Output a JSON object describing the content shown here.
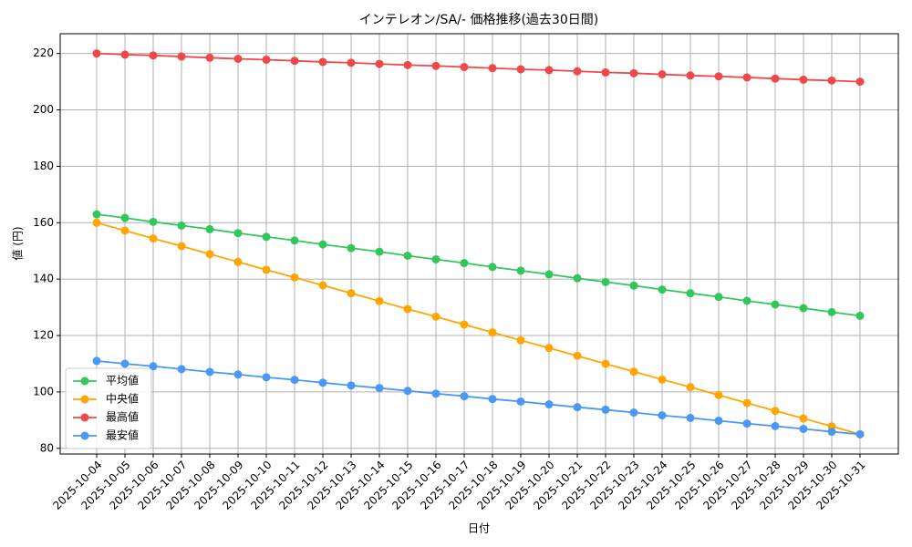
{
  "chart_data": {
    "type": "line",
    "title": "インテレオン/SA/- 価格推移(過去30日間)",
    "x_label": "日付",
    "y_label": "値 (円)",
    "categories": [
      "2025-10-04",
      "2025-10-05",
      "2025-10-06",
      "2025-10-07",
      "2025-10-08",
      "2025-10-09",
      "2025-10-10",
      "2025-10-11",
      "2025-10-12",
      "2025-10-13",
      "2025-10-14",
      "2025-10-15",
      "2025-10-16",
      "2025-10-17",
      "2025-10-18",
      "2025-10-19",
      "2025-10-20",
      "2025-10-21",
      "2025-10-22",
      "2025-10-23",
      "2025-10-24",
      "2025-10-25",
      "2025-10-26",
      "2025-10-27",
      "2025-10-28",
      "2025-10-29",
      "2025-10-30",
      "2025-10-31"
    ],
    "series": [
      {
        "name": "平均値",
        "color": "#33c75a",
        "values": [
          163,
          161.7,
          160.3,
          159,
          157.7,
          156.3,
          155,
          153.7,
          152.3,
          151,
          149.7,
          148.3,
          147,
          145.7,
          144.3,
          143,
          141.7,
          140.3,
          139,
          137.7,
          136.3,
          135,
          133.7,
          132.3,
          131,
          129.7,
          128.3,
          127
        ]
      },
      {
        "name": "中央値",
        "color": "#ffa500",
        "values": [
          160,
          157.2,
          154.4,
          151.7,
          148.9,
          146.1,
          143.3,
          140.6,
          137.8,
          135,
          132.2,
          129.4,
          126.7,
          123.9,
          121.1,
          118.3,
          115.6,
          112.8,
          110,
          107.2,
          104.4,
          101.7,
          98.9,
          96.1,
          93.3,
          90.6,
          87.8,
          85
        ]
      },
      {
        "name": "最高値",
        "color": "#f04848",
        "values": [
          220,
          219.6,
          219.3,
          218.9,
          218.5,
          218.1,
          217.8,
          217.4,
          217,
          216.7,
          216.3,
          215.9,
          215.6,
          215.2,
          214.8,
          214.4,
          214.1,
          213.7,
          213.3,
          213,
          212.6,
          212.2,
          211.9,
          211.5,
          211.1,
          210.7,
          210.4,
          210
        ]
      },
      {
        "name": "最安値",
        "color": "#4a98f5",
        "values": [
          111,
          110,
          109.1,
          108.1,
          107.1,
          106.2,
          105.2,
          104.3,
          103.3,
          102.3,
          101.4,
          100.4,
          99.4,
          98.5,
          97.5,
          96.6,
          95.6,
          94.6,
          93.7,
          92.7,
          91.7,
          90.8,
          89.8,
          88.8,
          87.9,
          86.9,
          85.9,
          85
        ]
      }
    ],
    "ylim": [
      78,
      227
    ],
    "yticks": [
      80,
      100,
      120,
      140,
      160,
      180,
      200,
      220
    ],
    "grid": true,
    "legend": "lower left"
  }
}
